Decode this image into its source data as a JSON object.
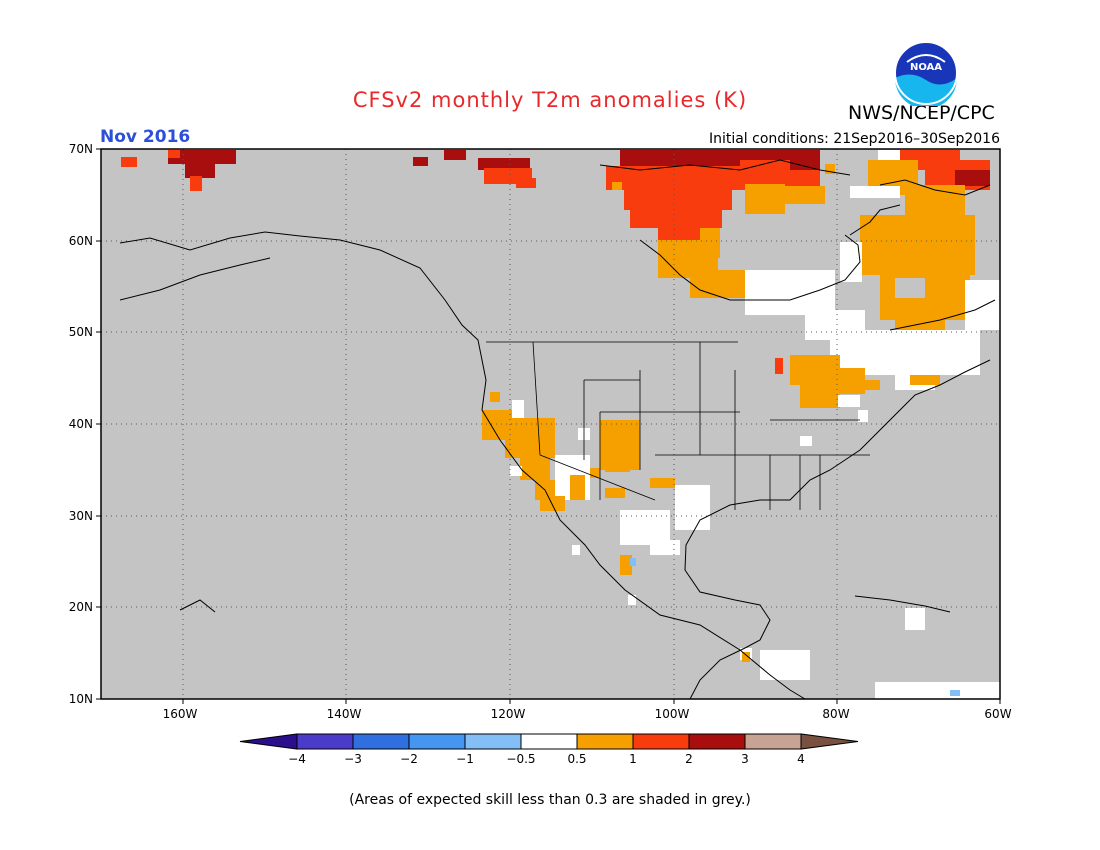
{
  "title": "CFSv2 monthly T2m anomalies (K)",
  "agency": "NWS/NCEP/CPC",
  "logo_text": "NOAA",
  "valid_month": "Nov 2016",
  "initial_conditions": "Initial conditions: 21Sep2016–30Sep2016",
  "footnote": "(Areas of expected skill less than 0.3 are shaded in grey.)",
  "lat_labels": [
    "70N",
    "60N",
    "50N",
    "40N",
    "30N",
    "20N",
    "10N"
  ],
  "lon_labels": [
    "160W",
    "140W",
    "120W",
    "100W",
    "80W",
    "60W"
  ],
  "colorbar": {
    "tick_labels": [
      "−4",
      "−3",
      "−2",
      "−1",
      "−0.5",
      "0.5",
      "1",
      "2",
      "3",
      "4"
    ],
    "colors": [
      "#2a0e8c",
      "#4a3cc8",
      "#2f6fe0",
      "#4496f0",
      "#84bef6",
      "#ffffff",
      "#f6a000",
      "#f83c0e",
      "#a80e0e",
      "#c7a393",
      "#7a5040"
    ]
  },
  "map": {
    "background_color": "#c4c4c4",
    "lat_range": [
      10,
      70
    ],
    "lon_range": [
      -170,
      -60
    ],
    "grid": "dotted 10 degree graticule",
    "category_colors": {
      "neutral": "#ffffff",
      "warm_0_5_to_1": "#f6a000",
      "warm_1_to_2": "#f83c0e",
      "warm_2_to_3": "#a80e0e",
      "cool_minus_1_to_minus_0_5": "#84bef6"
    }
  }
}
